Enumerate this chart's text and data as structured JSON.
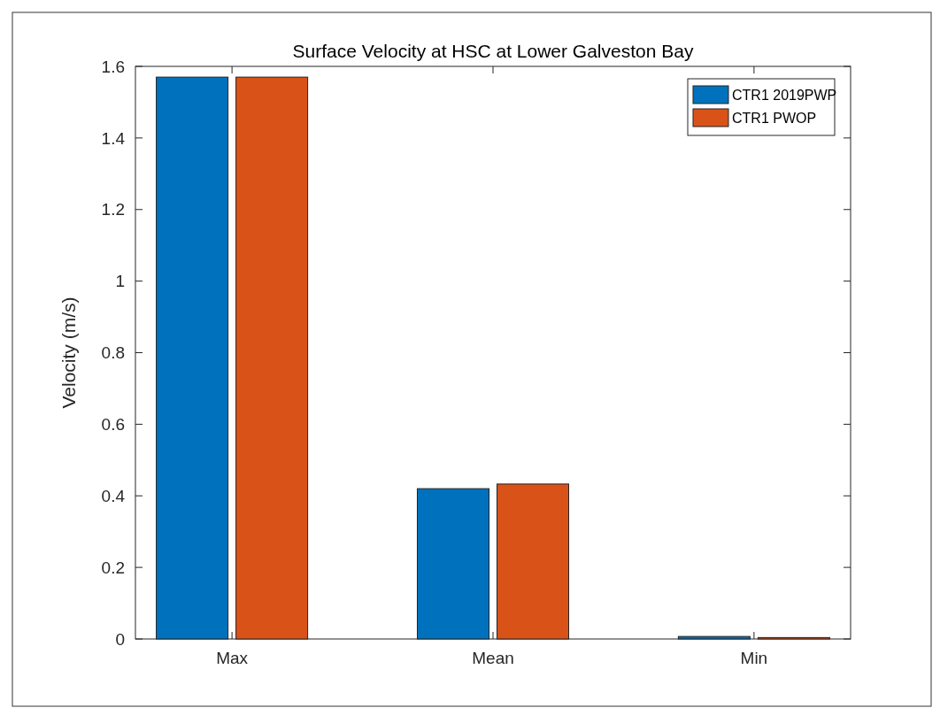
{
  "chart_data": {
    "type": "bar",
    "title": "Surface Velocity at HSC at Lower Galveston Bay",
    "ylabel": "Velocity (m/s)",
    "categories": [
      "Max",
      "Mean",
      "Min"
    ],
    "series": [
      {
        "name": "CTR1 2019PWP",
        "color": "#0072bd",
        "values": [
          1.57,
          0.42,
          0.007
        ]
      },
      {
        "name": "CTR1 PWOP",
        "color": "#d95319",
        "values": [
          1.57,
          0.433,
          0.004
        ]
      }
    ],
    "ylim": [
      0,
      1.6
    ],
    "yticks": [
      0,
      0.2,
      0.4,
      0.6,
      0.8,
      1,
      1.2,
      1.4,
      1.6
    ],
    "grid": false,
    "legend": "top right"
  }
}
